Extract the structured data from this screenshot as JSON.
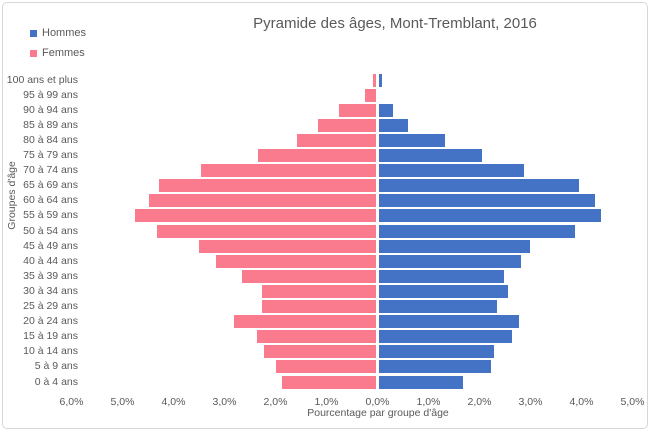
{
  "title": "Pyramide des âges, Mont-Tremblant, 2016",
  "legend": {
    "position": "top-left",
    "items": [
      {
        "label": "Hommes",
        "color": "#4472C4"
      },
      {
        "label": "Femmes",
        "color": "#FA7A8E"
      }
    ]
  },
  "axes": {
    "x_title": "Pourcentage par groupe d'âge",
    "y_title": "Groupes d'âge",
    "x_ticks": [
      {
        "value": -6,
        "label": "6,0%"
      },
      {
        "value": -5,
        "label": "5,0%"
      },
      {
        "value": -4,
        "label": "4,0%"
      },
      {
        "value": -3,
        "label": "3,0%"
      },
      {
        "value": -2,
        "label": "2,0%"
      },
      {
        "value": -1,
        "label": "1,0%"
      },
      {
        "value": 0,
        "label": "0,0%"
      },
      {
        "value": 1,
        "label": "1,0%"
      },
      {
        "value": 2,
        "label": "2,0%"
      },
      {
        "value": 3,
        "label": "3,0%"
      },
      {
        "value": 4,
        "label": "4,0%"
      },
      {
        "value": 5,
        "label": "5,0%"
      }
    ]
  },
  "chart_data": {
    "type": "bar",
    "subtype": "population_pyramid",
    "title": "Pyramide des âges, Mont-Tremblant, 2016",
    "xlabel": "Pourcentage par groupe d'âge",
    "ylabel": "Groupes d'âge",
    "values_unit": "percent_of_population",
    "gridlines": false,
    "legend_position": "top-left",
    "x_axis": {
      "left_max": 6.0,
      "right_max": 5.0,
      "tick_step": 1.0,
      "decimal_separator": "comma"
    },
    "categories": [
      "100 ans et plus",
      "95 à 99 ans",
      "90 à 94 ans",
      "85 à 89 ans",
      "80 à 84 ans",
      "75 à 79 ans",
      "70 à 74 ans",
      "65 à 69 ans",
      "60 à 64 ans",
      "55 à 59 ans",
      "50 à 54 ans",
      "45 à 49 ans",
      "40 à 44 ans",
      "35 à 39 ans",
      "30 à 34 ans",
      "25 à 29 ans",
      "20 à 24 ans",
      "15 à 19 ans",
      "10 à 14 ans",
      "5 à 9 ans",
      "0 à 4 ans"
    ],
    "series": [
      {
        "name": "Hommes",
        "side": "right",
        "color": "#4472C4",
        "values": [
          0.07,
          0.0,
          0.29,
          0.57,
          1.31,
          2.02,
          2.85,
          3.93,
          4.24,
          4.36,
          3.85,
          2.97,
          2.8,
          2.47,
          2.54,
          2.32,
          2.75,
          2.61,
          2.26,
          2.21,
          1.66
        ]
      },
      {
        "name": "Femmes",
        "side": "left",
        "color": "#FA7A8E",
        "values": [
          0.07,
          0.22,
          0.73,
          1.15,
          1.55,
          2.33,
          3.45,
          4.26,
          4.47,
          4.73,
          4.3,
          3.48,
          3.14,
          2.63,
          2.24,
          2.24,
          2.79,
          2.35,
          2.2,
          1.98,
          1.85
        ]
      }
    ]
  }
}
